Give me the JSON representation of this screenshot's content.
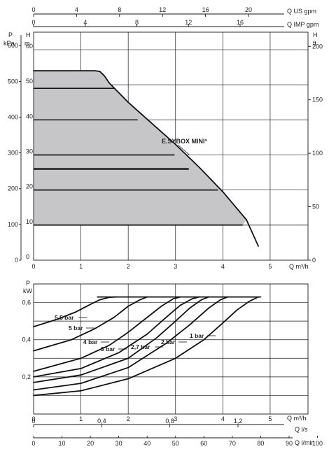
{
  "chart_data": [
    {
      "type": "area",
      "title": "",
      "curve_label": "E.SYBOX MINI³",
      "top_axes": [
        {
          "label": "Q US gpm",
          "ticks": [
            "0",
            "4",
            "8",
            "12",
            "16",
            "20"
          ],
          "values": [
            0,
            4,
            8,
            12,
            16,
            20
          ]
        },
        {
          "label": "Q IMP gpm",
          "ticks": [
            "0",
            "4",
            "8",
            "12",
            "16"
          ],
          "values": [
            0,
            4,
            8,
            12,
            16
          ]
        }
      ],
      "left_axes": [
        {
          "label_line1": "P",
          "label_line2": "kPa",
          "ticks": [
            "0",
            "100",
            "200",
            "300",
            "400",
            "500",
            "600"
          ],
          "values": [
            0,
            100,
            200,
            300,
            400,
            500,
            600
          ]
        },
        {
          "label_line1": "H",
          "label_line2": "m",
          "ticks": [
            "0",
            "10",
            "20",
            "30",
            "40",
            "50",
            "60"
          ],
          "values": [
            0,
            10,
            20,
            30,
            40,
            50,
            60
          ]
        }
      ],
      "right_axis": {
        "label_line1": "H",
        "label_line2": "ft",
        "ticks": [
          "0",
          "50",
          "100",
          "150",
          "200"
        ],
        "values": [
          0,
          50,
          100,
          150,
          200
        ]
      },
      "x_axis": {
        "label": "Q m³/h",
        "ticks": [
          "0",
          "1",
          "2",
          "3",
          "4",
          "5"
        ],
        "values": [
          0,
          1,
          2,
          3,
          4,
          5
        ]
      },
      "xlim": [
        0,
        5.8
      ],
      "ylim": [
        0,
        65
      ],
      "grid": true,
      "envelope": {
        "x": [
          0,
          1.3,
          1.4,
          1.5,
          1.6,
          2.0,
          2.5,
          3.0,
          3.5,
          4.0,
          4.5,
          4.75
        ],
        "y": [
          54,
          54,
          53.8,
          52.5,
          50.5,
          45,
          39,
          33,
          26.5,
          19.5,
          11.5,
          4
        ]
      },
      "pressure_levels": [
        {
          "y": 10,
          "x_end": 4.42
        },
        {
          "y": 20,
          "x_end": 3.9
        },
        {
          "y": 26,
          "x_end": 3.28
        },
        {
          "y": 30,
          "x_end": 2.98
        },
        {
          "y": 40,
          "x_end": 2.2
        },
        {
          "y": 49,
          "x_end": 1.72
        }
      ]
    },
    {
      "type": "line",
      "title": "",
      "y_axis": {
        "label_line1": "P",
        "label_line2": "kW",
        "ticks": [
          "0,2",
          "0,4",
          "0,6"
        ],
        "values": [
          0.2,
          0.4,
          0.6
        ]
      },
      "ylim": [
        0,
        0.7
      ],
      "x_axes": [
        {
          "label": "Q m³/h",
          "ticks": [
            "0",
            "1",
            "2",
            "3",
            "4",
            "5"
          ],
          "values": [
            0,
            1,
            2,
            3,
            4,
            5
          ]
        },
        {
          "label": "Q l/s",
          "ticks": [
            "0",
            "0,4",
            "0,8",
            "1,2"
          ],
          "values": [
            0,
            0.4,
            0.8,
            1.2
          ]
        },
        {
          "label": "Q l/min",
          "ticks": [
            "0",
            "10",
            "20",
            "30",
            "40",
            "50",
            "60",
            "70",
            "80",
            "90",
            "100"
          ],
          "values": [
            0,
            10,
            20,
            30,
            40,
            50,
            60,
            70,
            80,
            90,
            100
          ]
        }
      ],
      "xlim": [
        0,
        5.8
      ],
      "grid": true,
      "series": [
        {
          "name": "1 bar",
          "x": [
            0,
            1,
            2,
            3,
            3.6,
            4.0,
            4.3,
            4.55,
            4.75
          ],
          "y": [
            0.1,
            0.125,
            0.19,
            0.3,
            0.4,
            0.49,
            0.56,
            0.605,
            0.63
          ]
        },
        {
          "name": "2 bar",
          "x": [
            0,
            1,
            2,
            2.8,
            3.3,
            3.7,
            3.95,
            4.1
          ],
          "y": [
            0.13,
            0.165,
            0.25,
            0.38,
            0.48,
            0.57,
            0.615,
            0.63
          ]
        },
        {
          "name": "2,7 bar",
          "x": [
            0,
            1,
            2,
            2.6,
            3.0,
            3.3,
            3.55,
            3.7
          ],
          "y": [
            0.17,
            0.21,
            0.3,
            0.41,
            0.5,
            0.57,
            0.615,
            0.63
          ]
        },
        {
          "name": "3 bar",
          "x": [
            0,
            1,
            1.8,
            2.4,
            2.8,
            3.1,
            3.35,
            3.5
          ],
          "y": [
            0.2,
            0.245,
            0.33,
            0.43,
            0.52,
            0.585,
            0.62,
            0.63
          ]
        },
        {
          "name": "4 bar",
          "x": [
            0,
            1,
            1.6,
            2.0,
            2.35,
            2.7,
            2.95,
            3.1
          ],
          "y": [
            0.23,
            0.3,
            0.37,
            0.44,
            0.51,
            0.58,
            0.62,
            0.63
          ]
        },
        {
          "name": "5 bar",
          "x": [
            0,
            0.8,
            1.3,
            1.7,
            2.0,
            2.25,
            2.4
          ],
          "y": [
            0.34,
            0.4,
            0.46,
            0.52,
            0.58,
            0.615,
            0.63
          ]
        },
        {
          "name": "5,5 bar",
          "x": [
            0,
            0.5,
            0.9,
            1.2,
            1.4,
            1.6,
            1.75
          ],
          "y": [
            0.47,
            0.51,
            0.55,
            0.59,
            0.615,
            0.628,
            0.63
          ]
        }
      ],
      "cap": {
        "y": 0.63,
        "x": [
          1.35,
          4.8
        ]
      }
    }
  ]
}
